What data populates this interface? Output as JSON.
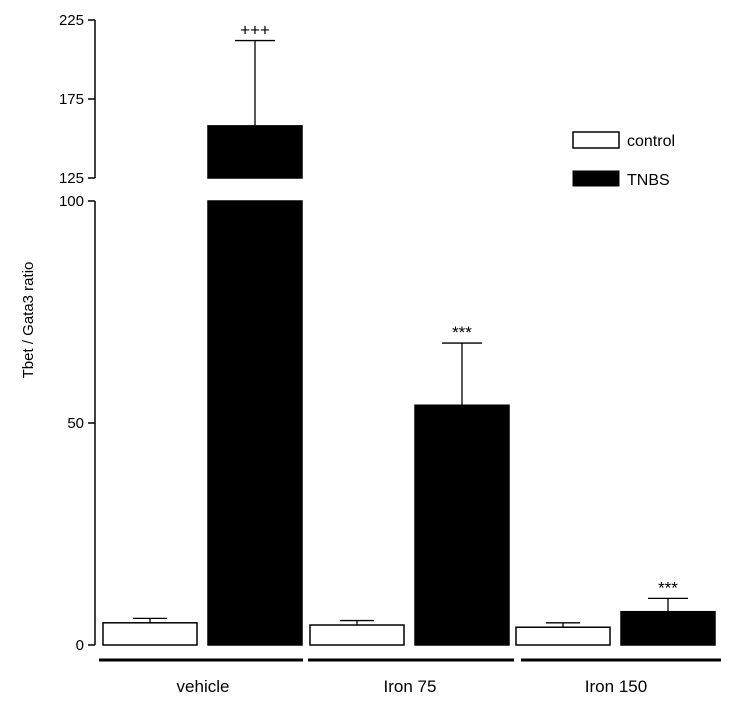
{
  "chart_data": {
    "type": "bar",
    "ylabel": "Tbet / Gata3 ratio",
    "y_axis_break": [
      100,
      125
    ],
    "ylim_lower": [
      0,
      100
    ],
    "ylim_upper": [
      125,
      225
    ],
    "yticks_lower": [
      "0",
      "50",
      "100"
    ],
    "yticks_upper": [
      "125",
      "175",
      "225"
    ],
    "categories": [
      "vehicle",
      "Iron 75",
      "Iron 150"
    ],
    "legend_position": "top-right",
    "series": [
      {
        "name": "control",
        "color": "#ffffff",
        "values": [
          5,
          4.5,
          4
        ],
        "errors": [
          1,
          1,
          1
        ],
        "annotations": [
          "",
          "",
          ""
        ]
      },
      {
        "name": "TNBS",
        "color": "#000000",
        "values": [
          158,
          54,
          7.5
        ],
        "errors": [
          54,
          14,
          3
        ],
        "annotations": [
          "+++",
          "***",
          "***"
        ]
      }
    ]
  }
}
